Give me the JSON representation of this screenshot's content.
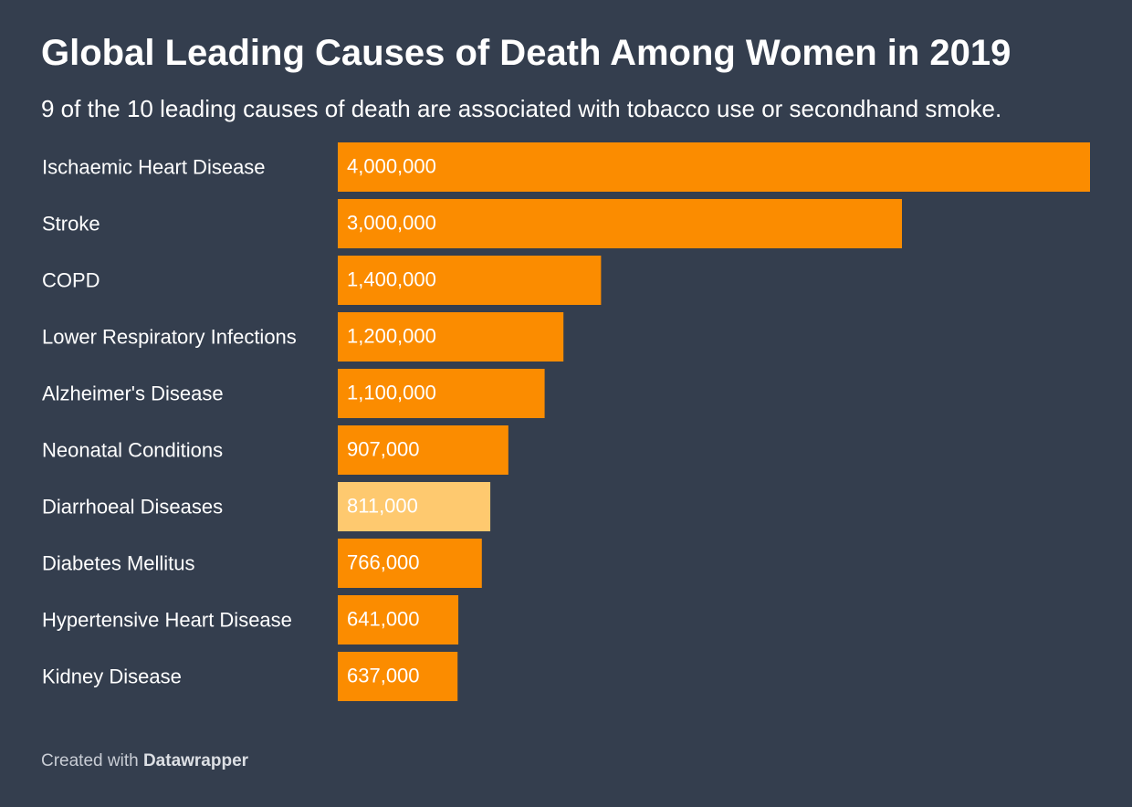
{
  "colors": {
    "background": "#343e4e",
    "bar": "#fb8c00",
    "bar_highlight": "#fec96f",
    "text": "#ffffff",
    "muted_text": "#c8ccd4"
  },
  "footer": {
    "prefix": "Created with",
    "brand": "Datawrapper"
  },
  "chart_data": {
    "type": "bar",
    "orientation": "horizontal",
    "title": "Global Leading Causes of Death Among Women in 2019",
    "subtitle": "9 of the 10 leading causes of death are associated with tobacco use or secondhand smoke.",
    "categories": [
      "Ischaemic Heart Disease",
      "Stroke",
      "COPD",
      "Lower Respiratory Infections",
      "Alzheimer's Disease",
      "Neonatal Conditions",
      "Diarrhoeal Diseases",
      "Diabetes Mellitus",
      "Hypertensive Heart Disease",
      "Kidney Disease"
    ],
    "values": [
      4000000,
      3000000,
      1400000,
      1200000,
      1100000,
      907000,
      811000,
      766000,
      641000,
      637000
    ],
    "value_labels": [
      "4,000,000",
      "3,000,000",
      "1,400,000",
      "1,200,000",
      "1,100,000",
      "907,000",
      "811,000",
      "766,000",
      "641,000",
      "637,000"
    ],
    "highlighted": [
      "Diarrhoeal Diseases"
    ],
    "xlim": [
      0,
      4000000
    ],
    "grid": false,
    "legend": "none"
  }
}
